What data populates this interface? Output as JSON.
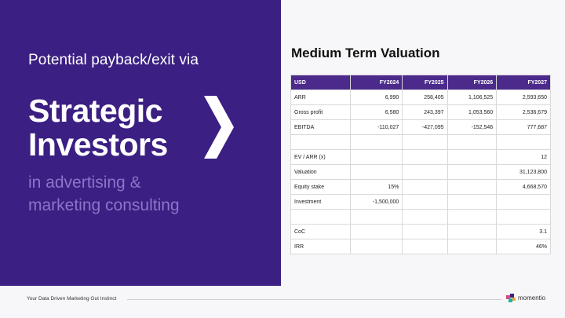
{
  "left": {
    "intro": "Potential payback/exit via",
    "headline_line1": "Strategic",
    "headline_line2": "Investors",
    "sub_line1": "in advertising &",
    "sub_line2": "marketing consulting"
  },
  "right": {
    "title": "Medium Term Valuation",
    "table": {
      "headers": [
        "USD",
        "FY2024",
        "FY2025",
        "FY2026",
        "FY2027"
      ],
      "rows": [
        [
          "ARR",
          "6,990",
          "258,405",
          "1,106,525",
          "2,593,650"
        ],
        [
          "Gross profit",
          "6,580",
          "243,397",
          "1,053,560",
          "2,536,679"
        ],
        [
          "EBITDA",
          "-110,027",
          "-427,095",
          "-152,546",
          "777,687"
        ],
        [
          "",
          "",
          "",
          "",
          ""
        ],
        [
          "EV / ARR (x)",
          "",
          "",
          "",
          "12"
        ],
        [
          "Valuation",
          "",
          "",
          "",
          "31,123,800"
        ],
        [
          "Equity stake",
          "15%",
          "",
          "",
          "4,668,570"
        ],
        [
          "Investment",
          "-1,500,000",
          "",
          "",
          ""
        ],
        [
          "",
          "",
          "",
          "",
          ""
        ],
        [
          "CoC",
          "",
          "",
          "",
          "3.1"
        ],
        [
          "IRR",
          "",
          "",
          "",
          "46%"
        ]
      ]
    }
  },
  "footer": {
    "tagline": "Your Data Driven Marketing Gut Instinct",
    "brand": "momentio"
  },
  "colors": {
    "panel": "#3b1f83",
    "header_row": "#4b2a8c",
    "subline": "#8e74c9"
  }
}
